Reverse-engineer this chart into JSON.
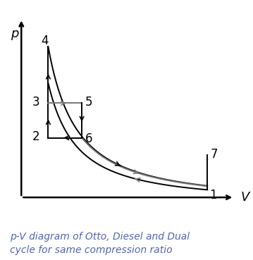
{
  "points": {
    "1": [
      0.88,
      0.06
    ],
    "2": [
      0.17,
      0.3
    ],
    "3": [
      0.17,
      0.46
    ],
    "4": [
      0.17,
      0.72
    ],
    "5": [
      0.32,
      0.46
    ],
    "6": [
      0.32,
      0.3
    ],
    "7": [
      0.88,
      0.22
    ]
  },
  "caption": "p-V diagram of Otto, Diesel and Dual\ncycle for same compression ratio",
  "xlabel": "V",
  "ylabel": "p",
  "background_color": "#ffffff",
  "line_color": "#000000",
  "gray_color": "#777777",
  "caption_color": "#5566aa",
  "caption_fontsize": 10.0,
  "axis_label_fontsize": 13,
  "point_label_fontsize": 12,
  "figsize": [
    3.59,
    3.69
  ],
  "dpi": 100,
  "gamma": 1.35
}
